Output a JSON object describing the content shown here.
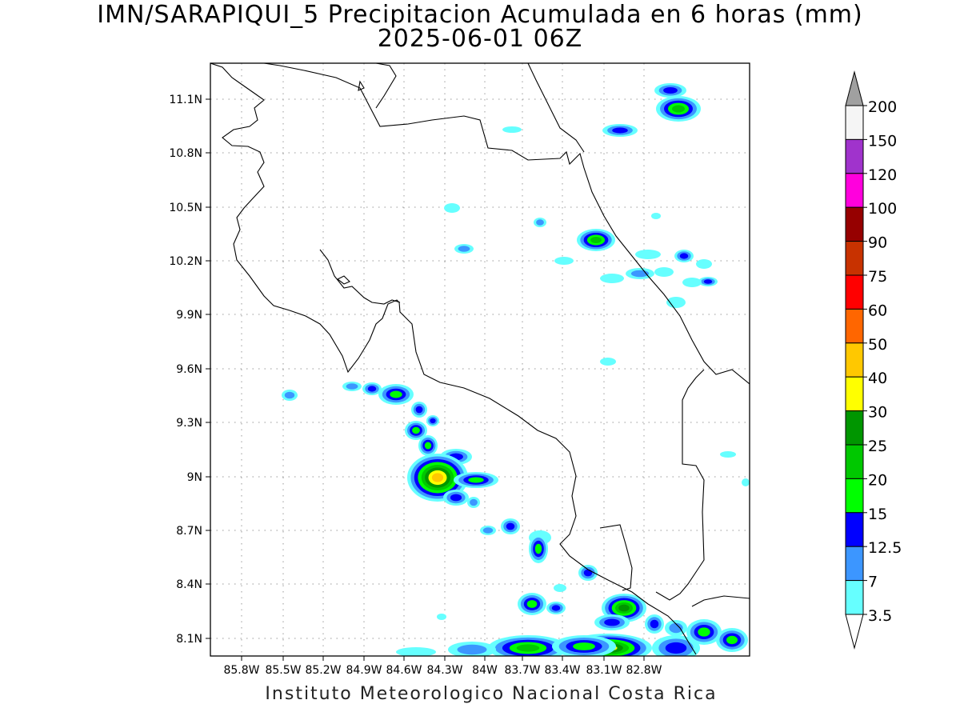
{
  "title_line1": "IMN/SARAPIQUI_5 Precipitacion Acumulada en 6 horas (mm)",
  "title_line2": "2025-06-01 06Z",
  "footer": "Instituto Meteorologico Nacional Costa Rica",
  "map": {
    "lon_labels": [
      "85.8W",
      "85.5W",
      "85.2W",
      "84.9W",
      "84.6W",
      "84.3W",
      "84W",
      "83.7W",
      "83.4W",
      "83.1W",
      "82.8W"
    ],
    "lat_labels": [
      "11.1N",
      "10.8N",
      "10.5N",
      "10.2N",
      "9.9N",
      "9.6N",
      "9.3N",
      "9N",
      "8.7N",
      "8.4N",
      "8.1N"
    ],
    "grid": true
  },
  "colorbar": {
    "labels": [
      "200",
      "150",
      "120",
      "100",
      "90",
      "75",
      "60",
      "50",
      "40",
      "30",
      "25",
      "20",
      "15",
      "12.5",
      "7",
      "3.5"
    ],
    "colors": [
      "#f5f5f5",
      "#a033cc",
      "#ff00dd",
      "#960000",
      "#c83200",
      "#ff0000",
      "#ff6600",
      "#ffc800",
      "#ffff00",
      "#009600",
      "#00c800",
      "#00ff00",
      "#0000ff",
      "#3c96ff",
      "#66ffff"
    ],
    "over_color": "#a0a0a0",
    "under_color": "#ffffff"
  }
}
